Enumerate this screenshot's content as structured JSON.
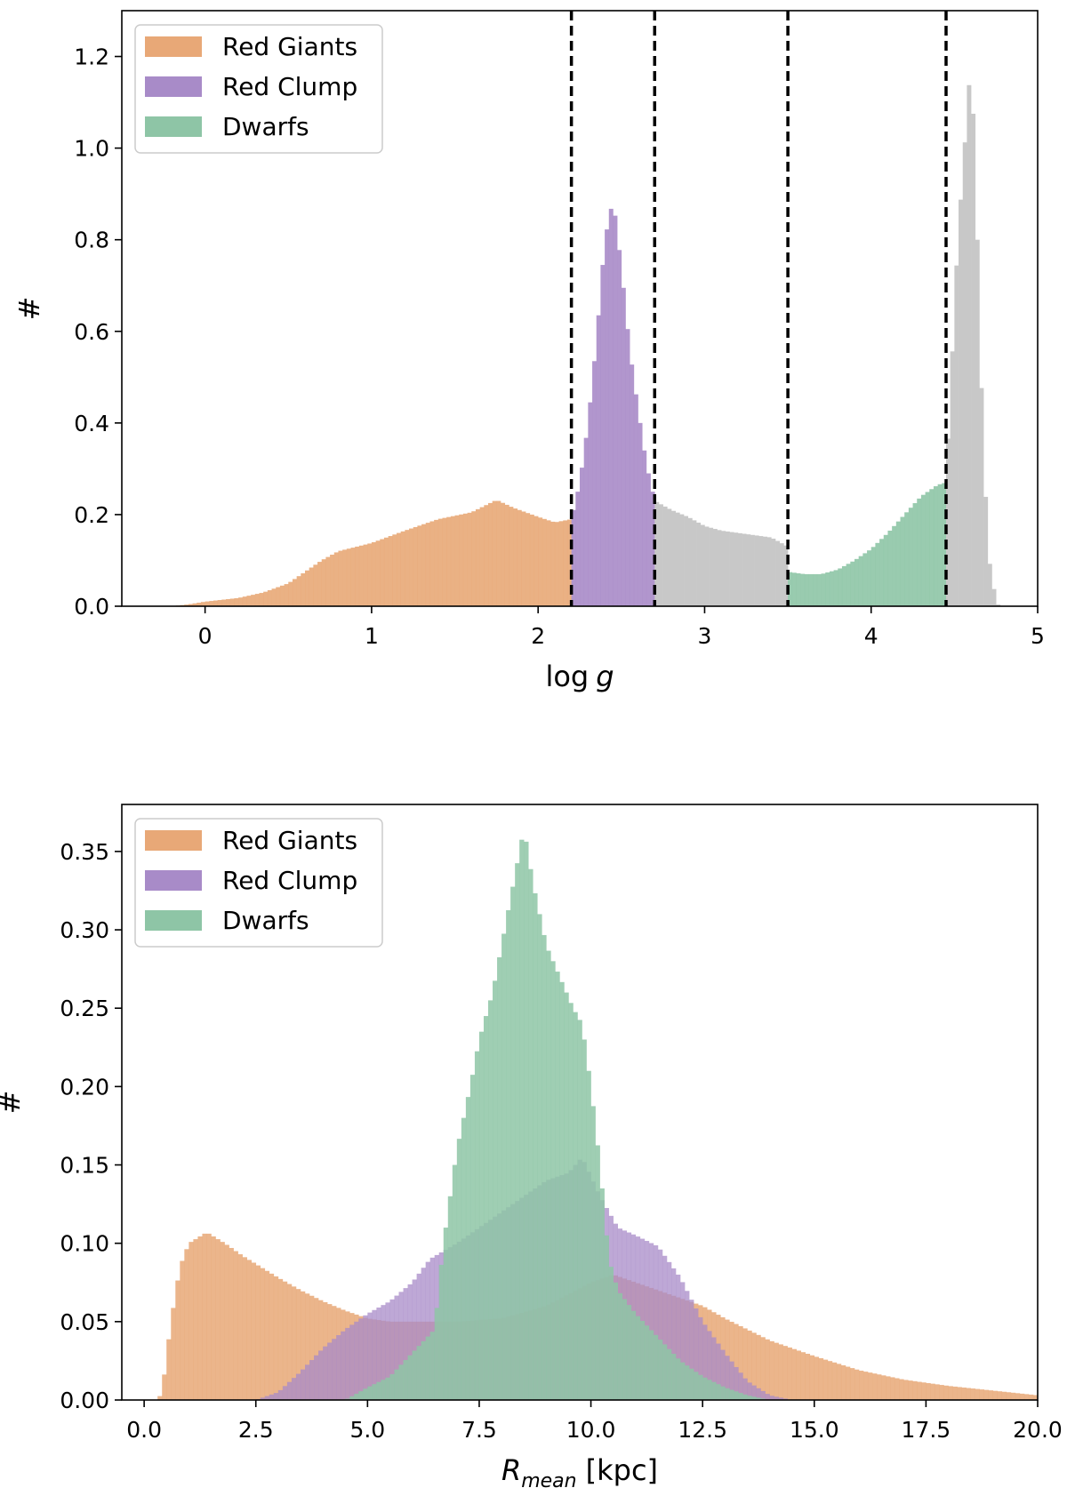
{
  "colors": {
    "red_giants": "#e8a877",
    "red_clump": "#a88bc8",
    "dwarfs": "#8ec5a6",
    "other": "#c8c8c8",
    "cut_line": "#000000"
  },
  "chart_data": [
    {
      "type": "bar",
      "subtype": "histogram",
      "xlabel_main": "log",
      "xlabel_italic": "g",
      "ylabel": "#",
      "xlim": [
        -0.5,
        5.0
      ],
      "ylim": [
        0,
        1.3
      ],
      "xticks": [
        0,
        1,
        2,
        3,
        4,
        5
      ],
      "yticks": [
        0.0,
        0.2,
        0.4,
        0.6,
        0.8,
        1.0,
        1.2
      ],
      "ytick_labels": [
        "0.0",
        "0.2",
        "0.4",
        "0.6",
        "0.8",
        "1.0",
        "1.2"
      ],
      "bin_width": 0.025,
      "legend": [
        "Red Giants",
        "Red Clump",
        "Dwarfs"
      ],
      "legend_position": "top-left",
      "grid": false,
      "cut_lines": [
        2.2,
        2.7,
        3.5,
        4.45
      ],
      "series": [
        {
          "name": "Red Giants",
          "color_key": "red_giants",
          "opacity": 0.9,
          "points": [
            [
              -0.2,
              0.0
            ],
            [
              -0.1,
              0.004
            ],
            [
              0.0,
              0.01
            ],
            [
              0.2,
              0.018
            ],
            [
              0.35,
              0.03
            ],
            [
              0.5,
              0.05
            ],
            [
              0.6,
              0.075
            ],
            [
              0.7,
              0.1
            ],
            [
              0.8,
              0.12
            ],
            [
              1.0,
              0.138
            ],
            [
              1.2,
              0.165
            ],
            [
              1.4,
              0.19
            ],
            [
              1.6,
              0.205
            ],
            [
              1.75,
              0.232
            ],
            [
              1.85,
              0.215
            ],
            [
              2.0,
              0.195
            ],
            [
              2.1,
              0.183
            ],
            [
              2.2,
              0.19
            ]
          ]
        },
        {
          "name": "Red Clump",
          "color_key": "red_clump",
          "opacity": 0.9,
          "points": [
            [
              2.2,
              0.19
            ],
            [
              2.25,
              0.27
            ],
            [
              2.3,
              0.4
            ],
            [
              2.35,
              0.58
            ],
            [
              2.4,
              0.8
            ],
            [
              2.45,
              0.89
            ],
            [
              2.5,
              0.74
            ],
            [
              2.55,
              0.56
            ],
            [
              2.6,
              0.43
            ],
            [
              2.65,
              0.31
            ],
            [
              2.7,
              0.23
            ]
          ]
        },
        {
          "name": "",
          "color_key": "other",
          "opacity": 1,
          "points": [
            [
              2.7,
              0.23
            ],
            [
              2.8,
              0.21
            ],
            [
              2.9,
              0.195
            ],
            [
              3.0,
              0.175
            ],
            [
              3.1,
              0.165
            ],
            [
              3.2,
              0.16
            ],
            [
              3.3,
              0.155
            ],
            [
              3.4,
              0.15
            ],
            [
              3.5,
              0.13
            ]
          ]
        },
        {
          "name": "Dwarfs",
          "color_key": "dwarfs",
          "opacity": 0.9,
          "points": [
            [
              3.5,
              0.075
            ],
            [
              3.6,
              0.07
            ],
            [
              3.7,
              0.07
            ],
            [
              3.8,
              0.08
            ],
            [
              3.9,
              0.1
            ],
            [
              4.0,
              0.125
            ],
            [
              4.1,
              0.16
            ],
            [
              4.2,
              0.2
            ],
            [
              4.3,
              0.24
            ],
            [
              4.4,
              0.265
            ],
            [
              4.45,
              0.27
            ]
          ]
        },
        {
          "name": "",
          "color_key": "other",
          "opacity": 1,
          "points": [
            [
              4.45,
              0.27
            ],
            [
              4.48,
              0.5
            ],
            [
              4.52,
              0.8
            ],
            [
              4.56,
              1.0
            ],
            [
              4.6,
              1.2
            ],
            [
              4.63,
              0.9
            ],
            [
              4.66,
              0.5
            ],
            [
              4.7,
              0.12
            ],
            [
              4.75,
              0.01
            ],
            [
              4.77,
              0.0
            ]
          ]
        }
      ]
    },
    {
      "type": "bar",
      "subtype": "histogram",
      "xlabel_main": "R",
      "xlabel_sub": "mean",
      "xlabel_suffix": "[kpc]",
      "ylabel": "#",
      "xlim": [
        -0.5,
        20.0
      ],
      "ylim": [
        0,
        0.38
      ],
      "xticks": [
        0.0,
        2.5,
        5.0,
        7.5,
        10.0,
        12.5,
        15.0,
        17.5,
        20.0
      ],
      "xtick_labels": [
        "0.0",
        "2.5",
        "5.0",
        "7.5",
        "10.0",
        "12.5",
        "15.0",
        "17.5",
        "20.0"
      ],
      "yticks": [
        0.0,
        0.05,
        0.1,
        0.15,
        0.2,
        0.25,
        0.3,
        0.35
      ],
      "ytick_labels": [
        "0.00",
        "0.05",
        "0.10",
        "0.15",
        "0.20",
        "0.25",
        "0.30",
        "0.35"
      ],
      "bin_width": 0.1,
      "legend": [
        "Red Giants",
        "Red Clump",
        "Dwarfs"
      ],
      "legend_position": "top-left",
      "grid": false,
      "series": [
        {
          "name": "Red Giants",
          "color_key": "red_giants",
          "opacity": 0.85,
          "points": [
            [
              0.3,
              0.0
            ],
            [
              0.4,
              0.005
            ],
            [
              0.6,
              0.05
            ],
            [
              0.8,
              0.085
            ],
            [
              1.0,
              0.1
            ],
            [
              1.4,
              0.107
            ],
            [
              1.8,
              0.1
            ],
            [
              2.2,
              0.092
            ],
            [
              2.6,
              0.085
            ],
            [
              3.0,
              0.078
            ],
            [
              3.5,
              0.07
            ],
            [
              4.0,
              0.063
            ],
            [
              4.5,
              0.057
            ],
            [
              5.0,
              0.052
            ],
            [
              5.5,
              0.05
            ],
            [
              6.0,
              0.05
            ],
            [
              7.0,
              0.05
            ],
            [
              8.0,
              0.052
            ],
            [
              9.0,
              0.06
            ],
            [
              10.0,
              0.075
            ],
            [
              10.5,
              0.08
            ],
            [
              11.0,
              0.075
            ],
            [
              11.5,
              0.07
            ],
            [
              12.0,
              0.065
            ],
            [
              12.5,
              0.06
            ],
            [
              13.0,
              0.052
            ],
            [
              13.5,
              0.045
            ],
            [
              14.0,
              0.038
            ],
            [
              15.0,
              0.028
            ],
            [
              16.0,
              0.019
            ],
            [
              17.0,
              0.013
            ],
            [
              18.0,
              0.009
            ],
            [
              19.0,
              0.006
            ],
            [
              20.0,
              0.003
            ]
          ]
        },
        {
          "name": "Red Clump",
          "color_key": "red_clump",
          "opacity": 0.75,
          "points": [
            [
              2.5,
              0.0
            ],
            [
              3.0,
              0.005
            ],
            [
              3.5,
              0.018
            ],
            [
              4.0,
              0.033
            ],
            [
              4.5,
              0.045
            ],
            [
              5.0,
              0.055
            ],
            [
              5.5,
              0.063
            ],
            [
              6.0,
              0.075
            ],
            [
              6.4,
              0.09
            ],
            [
              7.0,
              0.1
            ],
            [
              7.5,
              0.11
            ],
            [
              8.0,
              0.12
            ],
            [
              8.5,
              0.13
            ],
            [
              9.0,
              0.14
            ],
            [
              9.5,
              0.145
            ],
            [
              9.8,
              0.155
            ],
            [
              10.2,
              0.13
            ],
            [
              10.6,
              0.11
            ],
            [
              11.0,
              0.105
            ],
            [
              11.5,
              0.098
            ],
            [
              12.0,
              0.078
            ],
            [
              12.5,
              0.05
            ],
            [
              13.0,
              0.03
            ],
            [
              13.5,
              0.012
            ],
            [
              14.0,
              0.003
            ],
            [
              14.5,
              0.0
            ]
          ]
        },
        {
          "name": "Dwarfs",
          "color_key": "dwarfs",
          "opacity": 0.85,
          "points": [
            [
              4.5,
              0.0
            ],
            [
              5.0,
              0.008
            ],
            [
              5.5,
              0.015
            ],
            [
              6.0,
              0.03
            ],
            [
              6.5,
              0.045
            ],
            [
              6.7,
              0.1
            ],
            [
              7.0,
              0.16
            ],
            [
              7.3,
              0.2
            ],
            [
              7.5,
              0.23
            ],
            [
              7.8,
              0.26
            ],
            [
              8.0,
              0.29
            ],
            [
              8.2,
              0.32
            ],
            [
              8.4,
              0.35
            ],
            [
              8.5,
              0.365
            ],
            [
              8.7,
              0.33
            ],
            [
              9.0,
              0.29
            ],
            [
              9.3,
              0.27
            ],
            [
              9.6,
              0.25
            ],
            [
              9.8,
              0.24
            ],
            [
              10.0,
              0.2
            ],
            [
              10.2,
              0.15
            ],
            [
              10.4,
              0.09
            ],
            [
              10.6,
              0.07
            ],
            [
              11.0,
              0.055
            ],
            [
              11.5,
              0.04
            ],
            [
              12.0,
              0.025
            ],
            [
              12.5,
              0.015
            ],
            [
              13.0,
              0.008
            ],
            [
              13.5,
              0.003
            ],
            [
              14.0,
              0.0
            ]
          ]
        }
      ]
    }
  ]
}
